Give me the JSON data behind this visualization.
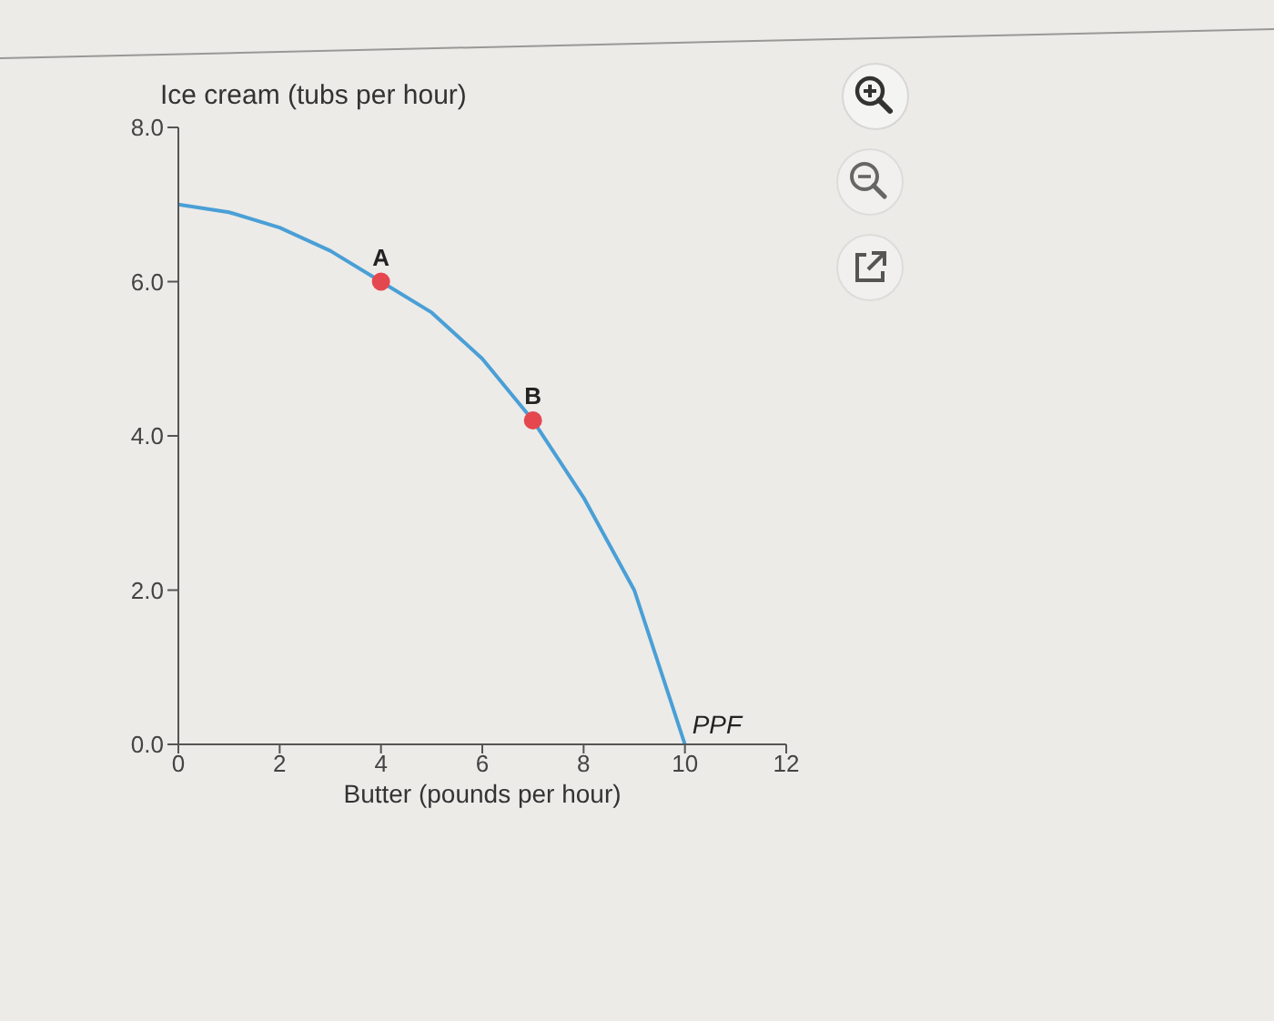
{
  "chart_data": {
    "type": "line",
    "xlabel": "Butter (pounds per hour)",
    "ylabel": "Ice cream (tubs per hour)",
    "series": [
      {
        "name": "PPF",
        "color": "#4a9fd6",
        "marker": "none",
        "line_style": "solid",
        "x": [
          0,
          1,
          2,
          3,
          4,
          5,
          6,
          7,
          8,
          9,
          10
        ],
        "values": [
          7.0,
          6.9,
          6.7,
          6.4,
          6.0,
          5.6,
          5.0,
          4.2,
          3.2,
          2.0,
          0.0
        ]
      },
      {
        "type": "scatter",
        "color": "#e5474f",
        "marker": "circle",
        "x": [
          4,
          7
        ],
        "values": [
          6.0,
          4.2
        ]
      }
    ],
    "xlim": [
      0,
      12
    ],
    "xticks": [
      0,
      2,
      4,
      6,
      8,
      10,
      12
    ],
    "ylim": [
      0,
      8
    ],
    "yticks": [
      {
        "value": 0,
        "label": "0.0"
      },
      {
        "value": 2,
        "label": "2.0"
      },
      {
        "value": 4,
        "label": "4.0"
      },
      {
        "value": 6,
        "label": "6.0"
      },
      {
        "value": 8,
        "label": "8.0"
      }
    ],
    "annotations": [
      {
        "text": "A",
        "x": 4,
        "y": 6.0
      },
      {
        "text": "B",
        "x": 7,
        "y": 4.2
      }
    ]
  }
}
